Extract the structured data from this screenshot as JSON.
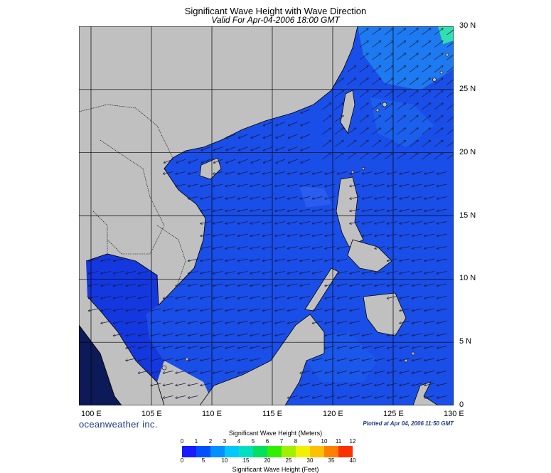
{
  "title": "Significant Wave Height with Wave Direction",
  "subtitle": "Valid For Apr-04-2006 18:00 GMT",
  "brand": "oceanweather inc.",
  "plotted": "Plotted at Apr 04, 2006 11:50 GMT",
  "map": {
    "lon_labels": [
      "100 E",
      "105 E",
      "110 E",
      "115 E",
      "120 E",
      "125 E",
      "130 E"
    ],
    "lat_labels": [
      "30 N",
      "25 N",
      "20 N",
      "15 N",
      "10 N",
      "5 N",
      "0"
    ],
    "lon_range": [
      99,
      130
    ],
    "lat_range": [
      0,
      30
    ],
    "grid": true,
    "land_color": "#c0c0c0",
    "arrow_color": "#1a1a3a"
  },
  "legend": {
    "meters_title": "Significant Wave Height (Meters)",
    "feet_title": "Significant Wave Height (Feet)",
    "meters_ticks": [
      "0",
      "1",
      "2",
      "3",
      "4",
      "5",
      "6",
      "7",
      "8",
      "9",
      "10",
      "11",
      "12"
    ],
    "feet_ticks": [
      "0",
      "5",
      "10",
      "15",
      "20",
      "25",
      "30",
      "35",
      "40"
    ],
    "colors": [
      "#1a1aff",
      "#0050ff",
      "#0090ff",
      "#00c8ff",
      "#00e0c0",
      "#00e060",
      "#30f000",
      "#a0f000",
      "#f0f000",
      "#ffc000",
      "#ff8000",
      "#ff3000"
    ]
  }
}
